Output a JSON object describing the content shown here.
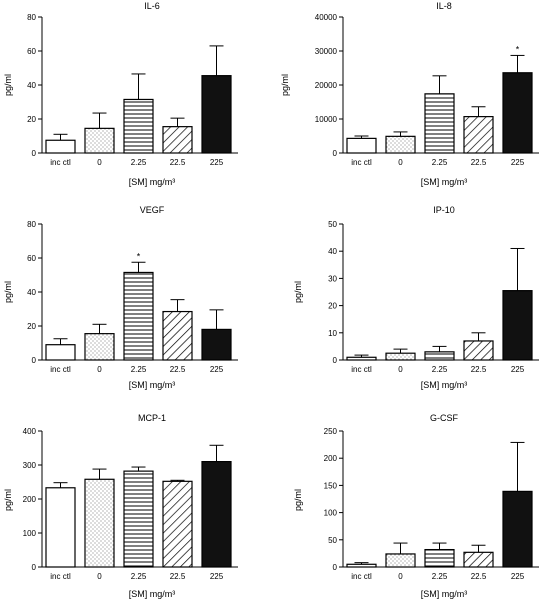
{
  "chart_data": [
    {
      "type": "bar",
      "title": "IL-6",
      "ylabel": "pg/ml",
      "xlabel": "[SM] mg/m³",
      "ylim": [
        0,
        80
      ],
      "yticks": [
        0,
        20,
        40,
        60,
        80
      ],
      "categories": [
        "inc ctl",
        "0",
        "2.25",
        "22.5",
        "225"
      ],
      "values": [
        7.5,
        14.5,
        31.5,
        15.5,
        45.5
      ],
      "errors": [
        3.5,
        9,
        15,
        5,
        17.5
      ],
      "annotations": [
        "",
        "",
        "",
        "",
        ""
      ]
    },
    {
      "type": "bar",
      "title": "IL-8",
      "ylabel": "pg/ml",
      "xlabel": "[SM] mg/m³",
      "ylim": [
        0,
        40000
      ],
      "yticks": [
        0,
        10000,
        20000,
        30000,
        40000
      ],
      "categories": [
        "inc ctl",
        "0",
        "2.25",
        "22.5",
        "225"
      ],
      "values": [
        4300,
        4900,
        17400,
        10700,
        23600
      ],
      "errors": [
        700,
        1300,
        5300,
        2900,
        5100
      ],
      "annotations": [
        "",
        "",
        "",
        "",
        "*"
      ]
    },
    {
      "type": "bar",
      "title": "VEGF",
      "ylabel": "pg/ml",
      "xlabel": "[SM] mg/m³",
      "ylim": [
        0,
        80
      ],
      "yticks": [
        0,
        20,
        40,
        60,
        80
      ],
      "categories": [
        "inc ctl",
        "0",
        "2.25",
        "22.5",
        "225"
      ],
      "values": [
        9,
        15.5,
        51.5,
        28.5,
        18
      ],
      "errors": [
        3.5,
        5.5,
        6,
        7,
        11.5
      ],
      "annotations": [
        "",
        "",
        "*",
        "",
        ""
      ]
    },
    {
      "type": "bar",
      "title": "IP-10",
      "ylabel": "pg/ml",
      "xlabel": "[SM] mg/m³",
      "ylim": [
        0,
        50
      ],
      "yticks": [
        0,
        10,
        20,
        30,
        40,
        50
      ],
      "categories": [
        "inc ctl",
        "0",
        "2.25",
        "22.5",
        "225"
      ],
      "values": [
        1,
        2.5,
        3,
        7,
        25.5
      ],
      "errors": [
        0.8,
        1.5,
        2,
        3,
        15.5
      ],
      "annotations": [
        "",
        "",
        "",
        "",
        ""
      ]
    },
    {
      "type": "bar",
      "title": "MCP-1",
      "ylabel": "pg/ml",
      "xlabel": "[SM] mg/m³",
      "ylim": [
        0,
        400
      ],
      "yticks": [
        0,
        100,
        200,
        300,
        400
      ],
      "categories": [
        "inc ctl",
        "0",
        "2.25",
        "22.5",
        "225"
      ],
      "values": [
        233,
        258,
        282,
        252,
        310
      ],
      "errors": [
        15,
        30,
        12,
        3,
        48
      ],
      "annotations": [
        "",
        "",
        "",
        "",
        ""
      ]
    },
    {
      "type": "bar",
      "title": "G-CSF",
      "ylabel": "pg/ml",
      "xlabel": "[SM] mg/m³",
      "ylim": [
        0,
        250
      ],
      "yticks": [
        0,
        50,
        100,
        150,
        200,
        250
      ],
      "categories": [
        "inc ctl",
        "0",
        "2.25",
        "22.5",
        "225"
      ],
      "values": [
        5,
        24,
        32,
        27,
        139
      ],
      "errors": [
        3,
        20,
        12,
        13,
        90
      ],
      "annotations": [
        "",
        "",
        "",
        "",
        ""
      ]
    }
  ],
  "bar_fills": [
    "open",
    "dotted",
    "horizontal-stripes",
    "diagonal-hatch",
    "solid-black"
  ]
}
